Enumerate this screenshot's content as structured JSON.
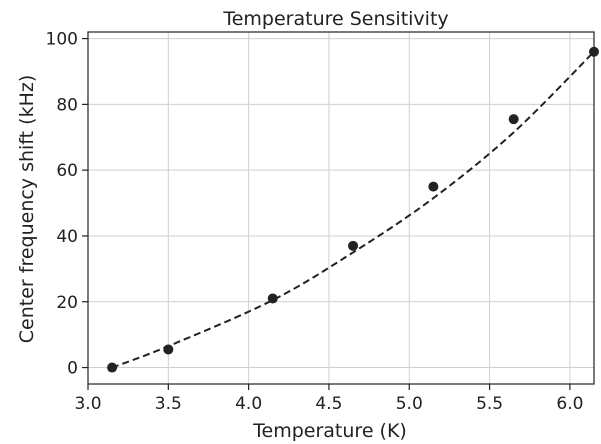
{
  "chart_data": {
    "type": "scatter",
    "title": "Temperature Sensitivity",
    "xlabel": "Temperature (K)",
    "ylabel": "Center frequency shift (kHz)",
    "xlim": [
      3.0,
      6.15
    ],
    "ylim": [
      -5,
      102
    ],
    "xticks": [
      3.0,
      3.5,
      4.0,
      4.5,
      5.0,
      5.5,
      6.0
    ],
    "xtick_labels": [
      "3.0",
      "3.5",
      "4.0",
      "4.5",
      "5.0",
      "5.5",
      "6.0"
    ],
    "yticks": [
      0,
      20,
      40,
      60,
      80,
      100
    ],
    "ytick_labels": [
      "0",
      "20",
      "40",
      "60",
      "80",
      "100"
    ],
    "grid": true,
    "series": [
      {
        "style": "markers",
        "color": "#222222",
        "x": [
          3.15,
          3.5,
          4.15,
          4.65,
          5.15,
          5.65,
          6.15
        ],
        "y": [
          0,
          5.5,
          21,
          37,
          55,
          75.5,
          96
        ]
      },
      {
        "style": "dashed-line",
        "color": "#222222",
        "x": [
          3.15,
          3.5,
          4.15,
          4.65,
          5.15,
          5.65,
          6.15
        ],
        "y": [
          0,
          6.5,
          20.5,
          35,
          51.5,
          71.5,
          96
        ]
      }
    ]
  }
}
